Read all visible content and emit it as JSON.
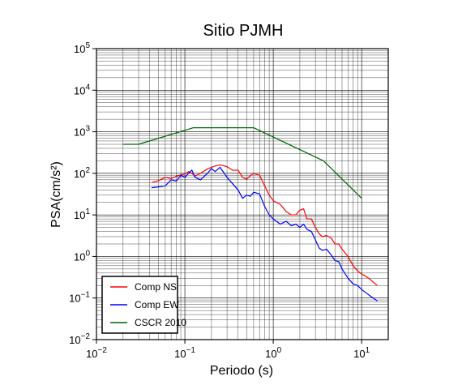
{
  "chart_data": {
    "type": "line",
    "title": "Sitio PJMH",
    "xlabel": "Periodo (s)",
    "ylabel": "PSA(cm/s²)",
    "x_scale": "log",
    "y_scale": "log",
    "xlim": [
      0.01,
      20
    ],
    "ylim": [
      0.01,
      100000
    ],
    "grid": true,
    "legend_position": "bottom-left",
    "x_ticks": [
      {
        "base": "10",
        "exp": "−2"
      },
      {
        "base": "10",
        "exp": "−1"
      },
      {
        "base": "10",
        "exp": "0"
      },
      {
        "base": "10",
        "exp": "1"
      }
    ],
    "y_ticks": [
      {
        "base": "10",
        "exp": "−2"
      },
      {
        "base": "10",
        "exp": "−1"
      },
      {
        "base": "10",
        "exp": "0"
      },
      {
        "base": "10",
        "exp": "1"
      },
      {
        "base": "10",
        "exp": "2"
      },
      {
        "base": "10",
        "exp": "3"
      },
      {
        "base": "10",
        "exp": "4"
      },
      {
        "base": "10",
        "exp": "5"
      }
    ],
    "series": [
      {
        "name": "Comp NS",
        "color": "#ff0000",
        "x": [
          0.042,
          0.05,
          0.06,
          0.07,
          0.08,
          0.09,
          0.1,
          0.11,
          0.12,
          0.13,
          0.15,
          0.18,
          0.2,
          0.22,
          0.25,
          0.3,
          0.35,
          0.4,
          0.45,
          0.5,
          0.55,
          0.6,
          0.7,
          0.8,
          0.9,
          1.0,
          1.2,
          1.4,
          1.6,
          1.8,
          2.0,
          2.2,
          2.4,
          2.7,
          3.0,
          3.3,
          3.6,
          4.0,
          4.5,
          5.0,
          5.5,
          6.0,
          7.0,
          8.0,
          9.0,
          10.0,
          12.0,
          15.0
        ],
        "y": [
          60,
          66,
          80,
          75,
          85,
          92,
          96,
          110,
          100,
          86,
          100,
          128,
          140,
          150,
          160,
          145,
          118,
          120,
          80,
          72,
          88,
          100,
          90,
          50,
          30,
          22,
          18,
          12,
          10,
          10,
          13,
          14,
          8,
          8,
          5,
          3.5,
          3,
          3.2,
          2.8,
          2,
          2,
          1.5,
          1,
          0.6,
          0.45,
          0.38,
          0.3,
          0.2
        ]
      },
      {
        "name": "Comp EW",
        "color": "#0000ff",
        "x": [
          0.042,
          0.05,
          0.06,
          0.07,
          0.08,
          0.09,
          0.1,
          0.11,
          0.12,
          0.13,
          0.15,
          0.18,
          0.2,
          0.22,
          0.25,
          0.3,
          0.35,
          0.4,
          0.45,
          0.5,
          0.55,
          0.6,
          0.7,
          0.8,
          0.9,
          1.0,
          1.2,
          1.4,
          1.6,
          1.8,
          2.0,
          2.2,
          2.4,
          2.7,
          3.0,
          3.3,
          3.6,
          4.0,
          4.5,
          5.0,
          5.5,
          6.0,
          7.0,
          8.0,
          9.0,
          10.0,
          12.0,
          15.0
        ],
        "y": [
          45,
          47,
          50,
          70,
          65,
          90,
          80,
          100,
          120,
          80,
          70,
          100,
          130,
          110,
          140,
          80,
          55,
          40,
          25,
          30,
          28,
          35,
          32,
          16,
          10,
          8,
          6,
          7,
          5.5,
          6,
          5,
          6,
          4.5,
          4,
          2.5,
          1.6,
          1.4,
          1.5,
          1.1,
          0.8,
          0.75,
          0.5,
          0.3,
          0.22,
          0.2,
          0.16,
          0.12,
          0.085
        ]
      },
      {
        "name": "CSCR 2010",
        "color": "#006400",
        "x": [
          0.02,
          0.03,
          0.125,
          0.6,
          3.7,
          10.0
        ],
        "y": [
          500,
          500,
          1250,
          1250,
          200,
          25
        ]
      }
    ]
  }
}
